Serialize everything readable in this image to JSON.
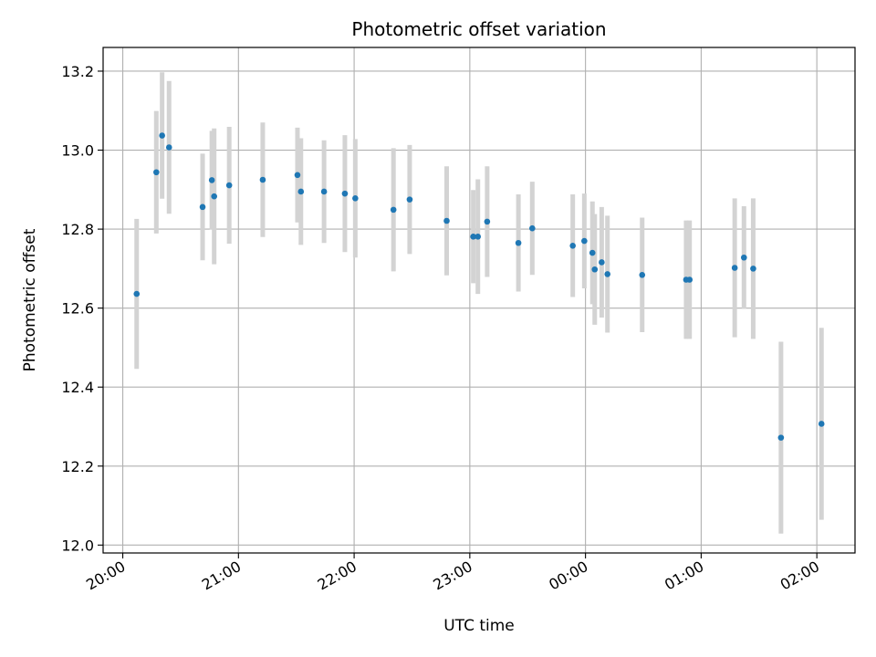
{
  "chart_data": {
    "type": "scatter",
    "title": "Photometric offset variation",
    "xlabel": "UTC time",
    "ylabel": "Photometric offset",
    "x_unit": "hours (UTC, continuing past midnight)",
    "xlim": [
      19.83,
      26.33
    ],
    "ylim": [
      11.98,
      13.26
    ],
    "x_ticks": [
      {
        "value": 20,
        "label": "20:00"
      },
      {
        "value": 21,
        "label": "21:00"
      },
      {
        "value": 22,
        "label": "22:00"
      },
      {
        "value": 23,
        "label": "23:00"
      },
      {
        "value": 24,
        "label": "00:00"
      },
      {
        "value": 25,
        "label": "01:00"
      },
      {
        "value": 26,
        "label": "02:00"
      }
    ],
    "y_ticks": [
      {
        "value": 12.0,
        "label": "12.0"
      },
      {
        "value": 12.2,
        "label": "12.2"
      },
      {
        "value": 12.4,
        "label": "12.4"
      },
      {
        "value": 12.6,
        "label": "12.6"
      },
      {
        "value": 12.8,
        "label": "12.8"
      },
      {
        "value": 13.0,
        "label": "13.0"
      },
      {
        "value": 13.2,
        "label": "13.2"
      }
    ],
    "grid": true,
    "colors": {
      "points": "#1f77b4",
      "errorbars": "#d3d3d3",
      "grid": "#b0b0b0"
    },
    "points": [
      {
        "x": 20.12,
        "y": 12.636,
        "err": 0.19
      },
      {
        "x": 20.29,
        "y": 12.944,
        "err": 0.155
      },
      {
        "x": 20.34,
        "y": 13.037,
        "err": 0.16
      },
      {
        "x": 20.4,
        "y": 13.007,
        "err": 0.168
      },
      {
        "x": 20.69,
        "y": 12.856,
        "err": 0.135
      },
      {
        "x": 20.77,
        "y": 12.924,
        "err": 0.125
      },
      {
        "x": 20.79,
        "y": 12.883,
        "err": 0.172
      },
      {
        "x": 20.92,
        "y": 12.911,
        "err": 0.148
      },
      {
        "x": 21.21,
        "y": 12.925,
        "err": 0.145
      },
      {
        "x": 21.51,
        "y": 12.937,
        "err": 0.12
      },
      {
        "x": 21.54,
        "y": 12.895,
        "err": 0.135
      },
      {
        "x": 21.74,
        "y": 12.895,
        "err": 0.13
      },
      {
        "x": 21.92,
        "y": 12.89,
        "err": 0.148
      },
      {
        "x": 22.01,
        "y": 12.878,
        "err": 0.15
      },
      {
        "x": 22.34,
        "y": 12.849,
        "err": 0.156
      },
      {
        "x": 22.48,
        "y": 12.875,
        "err": 0.138
      },
      {
        "x": 22.8,
        "y": 12.821,
        "err": 0.138
      },
      {
        "x": 23.03,
        "y": 12.781,
        "err": 0.118
      },
      {
        "x": 23.07,
        "y": 12.781,
        "err": 0.145
      },
      {
        "x": 23.15,
        "y": 12.819,
        "err": 0.14
      },
      {
        "x": 23.42,
        "y": 12.765,
        "err": 0.123
      },
      {
        "x": 23.54,
        "y": 12.802,
        "err": 0.118
      },
      {
        "x": 23.89,
        "y": 12.758,
        "err": 0.13
      },
      {
        "x": 23.99,
        "y": 12.77,
        "err": 0.12
      },
      {
        "x": 24.06,
        "y": 12.74,
        "err": 0.13
      },
      {
        "x": 24.08,
        "y": 12.698,
        "err": 0.14
      },
      {
        "x": 24.14,
        "y": 12.716,
        "err": 0.14
      },
      {
        "x": 24.19,
        "y": 12.686,
        "err": 0.148
      },
      {
        "x": 24.49,
        "y": 12.684,
        "err": 0.145
      },
      {
        "x": 24.87,
        "y": 12.672,
        "err": 0.15
      },
      {
        "x": 24.9,
        "y": 12.672,
        "err": 0.15
      },
      {
        "x": 25.29,
        "y": 12.702,
        "err": 0.176
      },
      {
        "x": 25.37,
        "y": 12.728,
        "err": 0.13
      },
      {
        "x": 25.45,
        "y": 12.7,
        "err": 0.178
      },
      {
        "x": 25.69,
        "y": 12.272,
        "err": 0.243
      },
      {
        "x": 26.04,
        "y": 12.307,
        "err": 0.243
      }
    ]
  }
}
